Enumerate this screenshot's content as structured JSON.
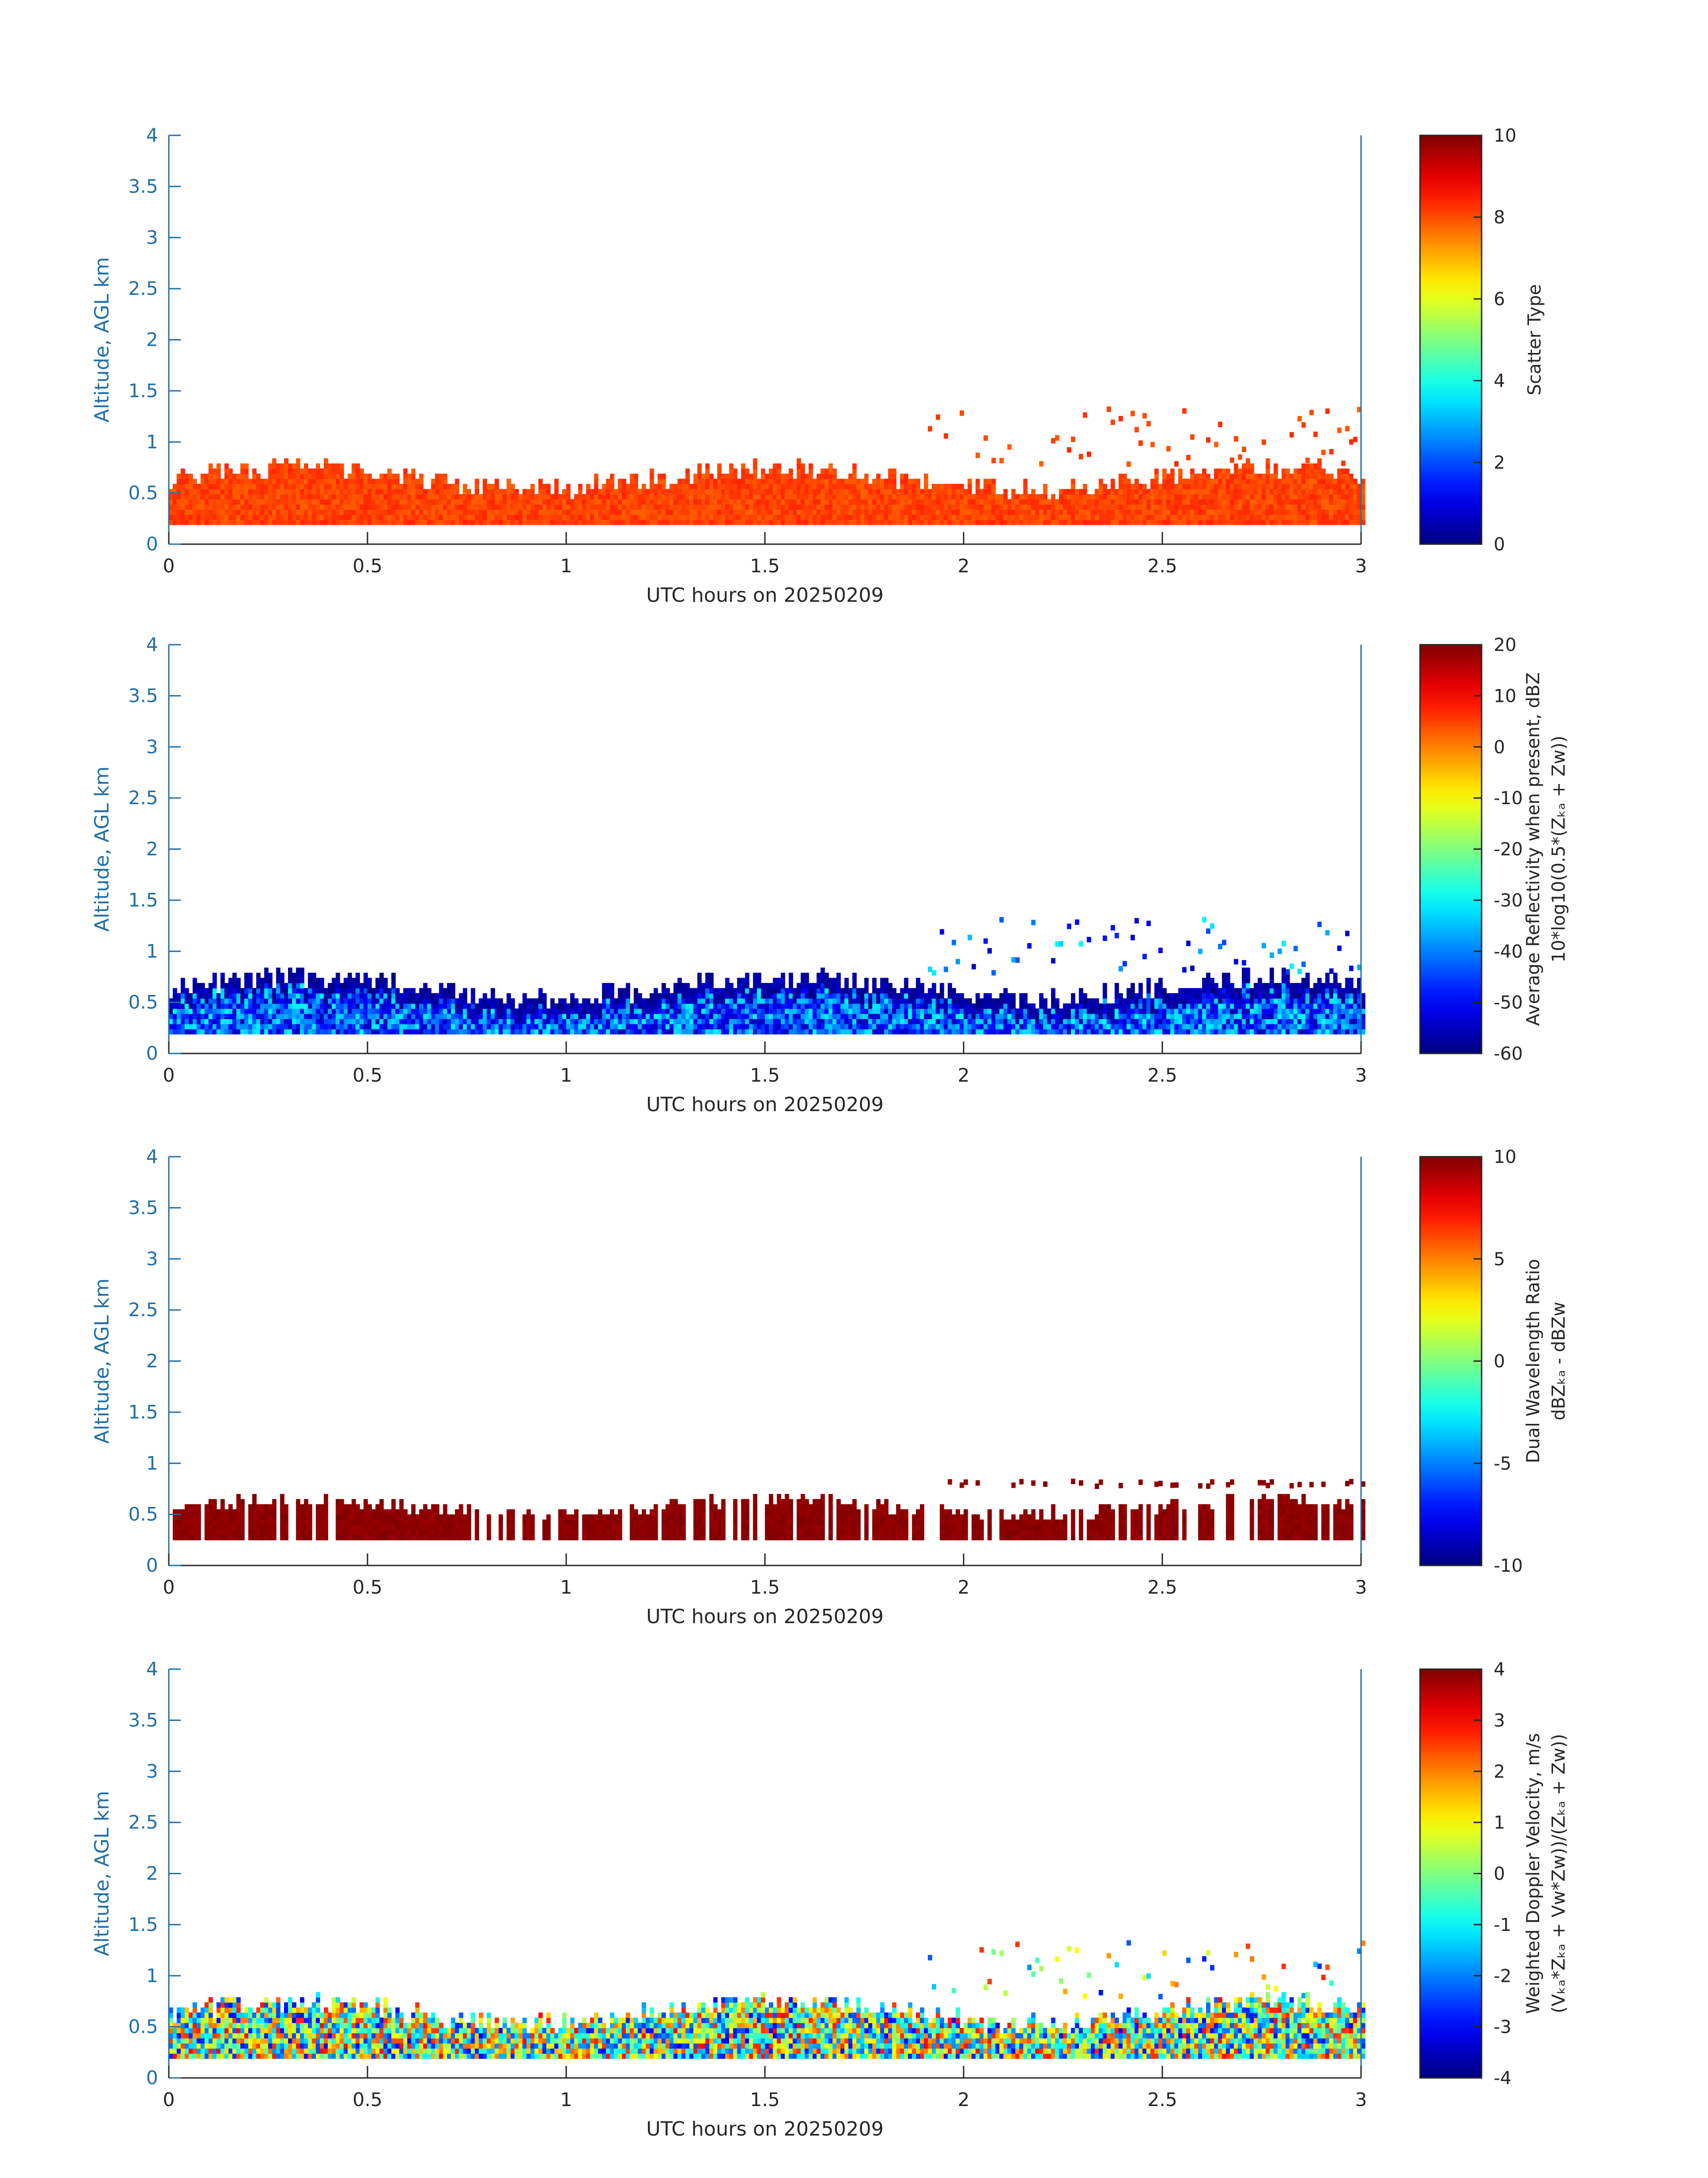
{
  "chart_data": [
    {
      "type": "heatmap",
      "xlabel": "UTC hours on 20250209",
      "ylabel": "Altitude, AGL km",
      "xlim": [
        0,
        3
      ],
      "ylim": [
        0,
        4
      ],
      "x_ticks": [
        "0",
        "0.5",
        "1",
        "1.5",
        "2",
        "2.5",
        "3"
      ],
      "y_ticks": [
        "0",
        "0.5",
        "1",
        "1.5",
        "2",
        "2.5",
        "3",
        "3.5",
        "4"
      ],
      "colorbar": {
        "label_lines": [
          "Scatter Type"
        ],
        "range": [
          0,
          10
        ],
        "ticks": [
          "0",
          "2",
          "4",
          "6",
          "8",
          "10"
        ],
        "colormap": "jet"
      },
      "value_range": [
        7.8,
        8.4
      ],
      "layer": {
        "base_km": 0.19,
        "mean_top_km": 0.62,
        "amplitude_km": 0.2,
        "cloud_top_km": 1.3,
        "edge_kind": "solid"
      }
    },
    {
      "type": "heatmap",
      "xlabel": "UTC hours on 20250209",
      "ylabel": "Altitude, AGL km",
      "xlim": [
        0,
        3
      ],
      "ylim": [
        0,
        4
      ],
      "x_ticks": [
        "0",
        "0.5",
        "1",
        "1.5",
        "2",
        "2.5",
        "3"
      ],
      "y_ticks": [
        "0",
        "0.5",
        "1",
        "1.5",
        "2",
        "2.5",
        "3",
        "3.5",
        "4"
      ],
      "colorbar": {
        "label_lines": [
          "Average Reflectivity when present, dBZ",
          "10*log10(0.5*(Zₖₐ + Zᴡ))"
        ],
        "range": [
          -60,
          20
        ],
        "ticks": [
          "-60",
          "-50",
          "-40",
          "-30",
          "-20",
          "-10",
          "0",
          "10",
          "20"
        ],
        "colormap": "jet"
      },
      "value_range": [
        -56,
        -30
      ],
      "layer": {
        "base_km": 0.19,
        "mean_top_km": 0.62,
        "amplitude_km": 0.2,
        "cloud_top_km": 1.3,
        "edge_kind": "dark"
      }
    },
    {
      "type": "heatmap",
      "xlabel": "UTC hours on 20250209",
      "ylabel": "Altitude, AGL km",
      "xlim": [
        0,
        3
      ],
      "ylim": [
        0,
        4
      ],
      "x_ticks": [
        "0",
        "0.5",
        "1",
        "1.5",
        "2",
        "2.5",
        "3"
      ],
      "y_ticks": [
        "0",
        "0.5",
        "1",
        "1.5",
        "2",
        "2.5",
        "3",
        "3.5",
        "4"
      ],
      "colorbar": {
        "label_lines": [
          "Dual Wavelength Ratio",
          "dBZₖₐ - dBZᴡ"
        ],
        "range": [
          -10,
          10
        ],
        "ticks": [
          "-10",
          "-5",
          "0",
          "5",
          "10"
        ],
        "colormap": "jet"
      },
      "value_range": [
        9.5,
        10
      ],
      "layer": {
        "base_km": 0.25,
        "mean_top_km": 0.55,
        "amplitude_km": 0.15,
        "cloud_top_km": 0.8,
        "edge_kind": "solid"
      }
    },
    {
      "type": "heatmap",
      "xlabel": "UTC hours on 20250209",
      "ylabel": "Altitude, AGL km",
      "xlim": [
        0,
        3
      ],
      "ylim": [
        0,
        4
      ],
      "x_ticks": [
        "0",
        "0.5",
        "1",
        "1.5",
        "2",
        "2.5",
        "3"
      ],
      "y_ticks": [
        "0",
        "0.5",
        "1",
        "1.5",
        "2",
        "2.5",
        "3",
        "3.5",
        "4"
      ],
      "colorbar": {
        "label_lines": [
          "Weighted Doppler Velocity, m/s",
          "(Vₖₐ*Zₖₐ + Vᴡ*Zᴡ))/(Zₖₐ + Zᴡ))"
        ],
        "range": [
          -4,
          4
        ],
        "ticks": [
          "-4",
          "-3",
          "-2",
          "-1",
          "0",
          "1",
          "2",
          "3",
          "4"
        ],
        "colormap": "jet"
      },
      "value_range": [
        -3,
        3
      ],
      "layer": {
        "base_km": 0.19,
        "mean_top_km": 0.62,
        "amplitude_km": 0.2,
        "cloud_top_km": 1.3,
        "edge_kind": "velocity"
      }
    }
  ]
}
